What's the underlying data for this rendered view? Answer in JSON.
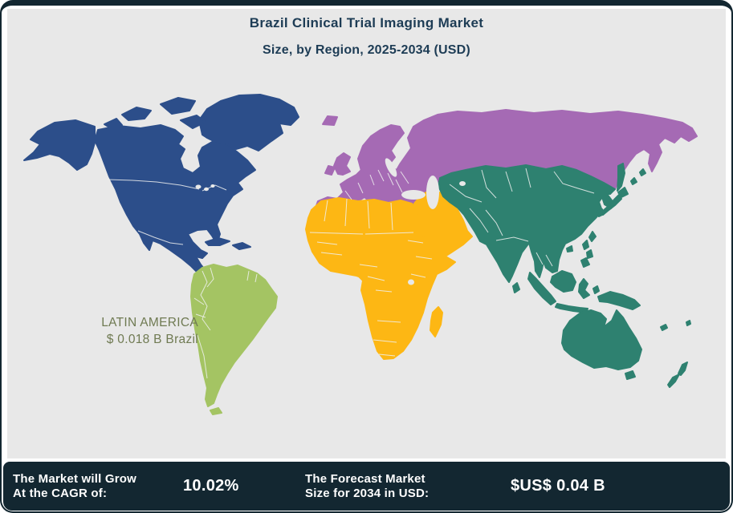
{
  "header": {
    "title": "Brazil Clinical Trial Imaging Market",
    "subtitle": "Size, by Region, 2025-2034 (USD)",
    "text_color": "#1d3c55"
  },
  "map": {
    "background_color": "#e8e8e8",
    "water_color": "#e8e8e8",
    "border_line_color": "#f0f1f0",
    "callout": {
      "region": "LATIN AMERICA",
      "value": "$ 0.018 B Brazil",
      "text_color": "#6f7a52"
    },
    "regions": [
      {
        "id": "north-america",
        "name": "North America",
        "color": "#2c4e8a"
      },
      {
        "id": "latin-america",
        "name": "Latin America",
        "color": "#a4c463"
      },
      {
        "id": "europe-russia",
        "name": "Europe & Russia",
        "color": "#a56ab4"
      },
      {
        "id": "africa-middle-east",
        "name": "Africa & Middle East",
        "color": "#fdb714"
      },
      {
        "id": "asia-pacific",
        "name": "Asia Pacific",
        "color": "#2e8170"
      }
    ]
  },
  "footer": {
    "background_color": "#132731",
    "text_color": "#ffffff",
    "stats": [
      {
        "label_line1": "The Market will Grow",
        "label_line2": "At the CAGR of:",
        "value": "10.02%"
      },
      {
        "label_line1": "The Forecast Market",
        "label_line2": "Size for 2034 in USD:",
        "value": "$US$ 0.04 B"
      }
    ]
  },
  "chart_data": {
    "type": "map",
    "title": "Brazil Clinical Trial Imaging Market",
    "subtitle": "Size, by Region, 2025-2034 (USD)",
    "regions": [
      {
        "name": "North America",
        "color": "#2c4e8a",
        "value": null
      },
      {
        "name": "Latin America",
        "color": "#a4c463",
        "value": "$ 0.018 B Brazil"
      },
      {
        "name": "Europe & Russia",
        "color": "#a56ab4",
        "value": null
      },
      {
        "name": "Africa & Middle East",
        "color": "#fdb714",
        "value": null
      },
      {
        "name": "Asia Pacific",
        "color": "#2e8170",
        "value": null
      }
    ],
    "annotations": [
      "LATIN AMERICA $ 0.018 B Brazil"
    ],
    "cagr": "10.02%",
    "forecast_2034": "$US$ 0.04 B",
    "legend_position": "none",
    "grid": false
  }
}
